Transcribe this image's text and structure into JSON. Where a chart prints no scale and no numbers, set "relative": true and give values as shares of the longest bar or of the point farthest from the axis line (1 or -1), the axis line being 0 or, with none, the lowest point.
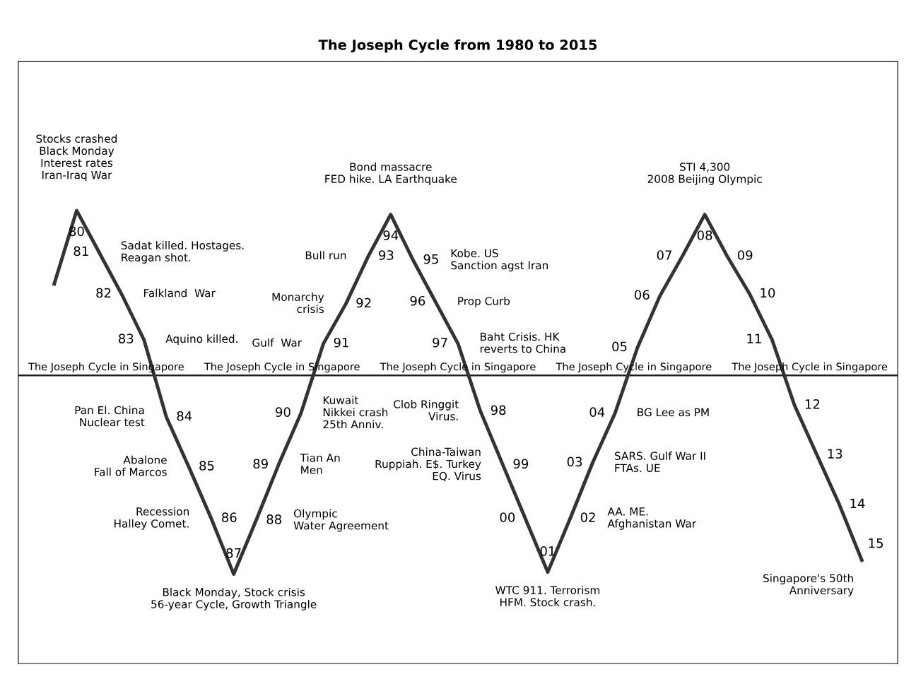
{
  "chart_data": {
    "type": "line",
    "title": "The Joseph Cycle from 1980 to 2015",
    "relative": true,
    "marker": "none",
    "line_style": "solid",
    "categories": [
      null,
      null,
      null,
      null,
      null,
      null,
      null,
      null,
      null,
      null,
      null,
      null,
      null,
      null,
      null,
      null,
      null,
      null,
      null,
      null,
      null,
      null,
      null,
      null,
      null,
      null,
      null,
      null,
      null,
      null,
      null,
      null,
      null,
      null,
      null,
      null,
      null
    ],
    "series": [
      {
        "color": "#333333",
        "values": [
          0.46,
          0.83,
          0.62,
          0.41,
          0.18,
          -0.21,
          -0.46,
          -0.72,
          -1,
          -0.73,
          -0.45,
          -0.19,
          0.16,
          0.36,
          0.6,
          0.81,
          0.58,
          0.37,
          0.16,
          -0.18,
          -0.45,
          -0.72,
          -0.99,
          -0.72,
          -0.44,
          -0.19,
          0.14,
          0.4,
          0.6,
          0.81,
          0.6,
          0.41,
          0.18,
          -0.15,
          -0.4,
          -0.65,
          -0.93
        ]
      }
    ],
    "annotations": [
      "80",
      "Stocks crashed\nBlack Monday\nInterest rates\nIran-Iraq War",
      "81",
      "Sadat killed. Hostages.\nReagan shot.",
      "82",
      "Falkland  War",
      "83",
      "Aquino killed.",
      "84",
      "Pan El. China\nNuclear test",
      "85",
      "Abalone\nFall of Marcos",
      "86",
      "Recession\nHalley Comet.",
      "87",
      "Black Monday, Stock crisis\n56-year Cycle, Growth Triangle",
      "88",
      "Olympic\nWater Agreement",
      "89",
      "Tian An\nMen",
      "90",
      "Kuwait\nNikkei crash\n25th Anniv.",
      "91",
      "Gulf  War",
      "92",
      "Monarchy\ncrisis",
      "93",
      "Bull run",
      "94",
      "Bond massacre\nFED hike. LA Earthquake",
      "95",
      "Kobe. US\nSanction agst Iran",
      "96",
      "Prop Curb",
      "97",
      "Baht Crisis. HK\nreverts to China",
      "98",
      "Clob Ringgit\nVirus.",
      "99",
      "China-Taiwan\nRuppiah. E$. Turkey\nEQ. Virus",
      "00",
      "01",
      "WTC 911. Terrorism\nHFM. Stock crash.",
      "02",
      "AA. ME.\nAfghanistan War",
      "03",
      "SARS. Gulf War II\nFTAs. UE",
      "04",
      "BG Lee as PM",
      "05",
      "06",
      "07",
      "08",
      "STI 4,300\n2008 Beijing Olympic",
      "09",
      "10",
      "11",
      "12",
      "13",
      "14",
      "15",
      "Singapore's 50th\nAnniversary",
      "The Joseph Cycle in Singapore",
      "The Joseph Cycle in Singapore",
      "The Joseph Cycle in Singapore",
      "The Joseph Cycle in Singapore",
      "The Joseph Cycle in Singapore"
    ]
  }
}
